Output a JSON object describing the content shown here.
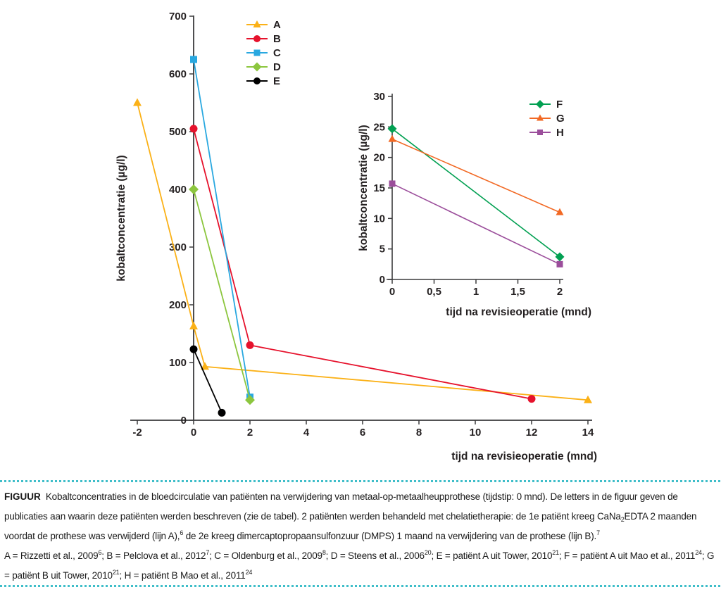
{
  "figure_text_color": "#231f20",
  "divider_color": "#3fbec9",
  "chart_data": [
    {
      "id": "main",
      "type": "line",
      "title": "",
      "xlabel": "tijd na revisieoperatie (mnd)",
      "ylabel": "kobaltconcentratie (µg/l)",
      "xlim": [
        -2,
        14
      ],
      "ylim": [
        0,
        700
      ],
      "grid": false,
      "legend_position": "top-left-inside",
      "xticks": [
        -2,
        0,
        2,
        4,
        6,
        8,
        10,
        12,
        14
      ],
      "xtick_labels": [
        "-2",
        "0",
        "2",
        "4",
        "6",
        "8",
        "10",
        "12",
        "14"
      ],
      "yticks": [
        0,
        100,
        200,
        300,
        400,
        500,
        600,
        700
      ],
      "ytick_labels": [
        "0",
        "100",
        "200",
        "300",
        "400",
        "500",
        "600",
        "700"
      ],
      "series": [
        {
          "name": "A",
          "color": "#fbb117",
          "marker": "triangle",
          "points": [
            [
              -2,
              550
            ],
            [
              0,
              163
            ],
            [
              0.4,
              93
            ],
            [
              14,
              35
            ]
          ]
        },
        {
          "name": "B",
          "color": "#e6122c",
          "marker": "circle",
          "points": [
            [
              0,
              505
            ],
            [
              2,
              130
            ],
            [
              12,
              37
            ]
          ]
        },
        {
          "name": "C",
          "color": "#29a8e0",
          "marker": "square",
          "points": [
            [
              0,
              625
            ],
            [
              2,
              40
            ]
          ]
        },
        {
          "name": "D",
          "color": "#8cc63e",
          "marker": "diamond",
          "points": [
            [
              0,
              400
            ],
            [
              2,
              35
            ]
          ]
        },
        {
          "name": "E",
          "color": "#000000",
          "marker": "circle",
          "points": [
            [
              0,
              123
            ],
            [
              1,
              13
            ]
          ]
        }
      ]
    },
    {
      "id": "inset",
      "type": "line",
      "title": "",
      "xlabel": "tijd na revisieoperatie (mnd)",
      "ylabel": "kobaltconcentratie (µg/l)",
      "xlim": [
        0,
        2
      ],
      "ylim": [
        0,
        30
      ],
      "grid": false,
      "legend_position": "top-right-inside",
      "xticks": [
        0,
        0.5,
        1,
        1.5,
        2
      ],
      "xtick_labels": [
        "0",
        "0,5",
        "1",
        "1,5",
        "2"
      ],
      "yticks": [
        0,
        5,
        10,
        15,
        20,
        25,
        30
      ],
      "ytick_labels": [
        "0",
        "5",
        "10",
        "15",
        "20",
        "25",
        "30"
      ],
      "series": [
        {
          "name": "F",
          "color": "#02a052",
          "marker": "diamond",
          "points": [
            [
              0,
              24.7
            ],
            [
              2,
              3.7
            ]
          ]
        },
        {
          "name": "G",
          "color": "#f26924",
          "marker": "triangle",
          "points": [
            [
              0,
              23
            ],
            [
              2,
              11
            ]
          ]
        },
        {
          "name": "H",
          "color": "#9b4e9b",
          "marker": "square",
          "points": [
            [
              0,
              15.7
            ],
            [
              2,
              2.5
            ]
          ]
        }
      ]
    }
  ],
  "caption": {
    "label": "FIGUUR",
    "paragraphs": [
      [
        {
          "t": "Kobaltconcentraties in de bloedcirculatie van patiënten na verwijdering van metaal-op-metaalheupprothese (tijdstip: 0 mnd). De letters in de figuur geven de publicaties aan waarin deze patiënten werden beschreven (zie de tabel). 2 patiënten werden behandeld met chelatietherapie: de 1e patiënt kreeg CaNa"
        },
        {
          "t": "2",
          "style": "sub"
        },
        {
          "t": "EDTA 2 maanden voordat de prothese was verwijderd (lijn A),"
        },
        {
          "t": "6",
          "style": "sup"
        },
        {
          "t": " de 2e kreeg dimercaptopropaansulfonzuur (DMPS) 1 maand na verwijdering van de prothese (lijn B)."
        },
        {
          "t": "7",
          "style": "sup"
        }
      ],
      [
        {
          "t": "A = Rizzetti et al., 2009"
        },
        {
          "t": "6",
          "style": "sup"
        },
        {
          "t": "; B = Pelclova et al., 2012"
        },
        {
          "t": "7",
          "style": "sup"
        },
        {
          "t": "; C = Oldenburg et al., 2009"
        },
        {
          "t": "8",
          "style": "sup"
        },
        {
          "t": "; D = Steens et al., 2006"
        },
        {
          "t": "20",
          "style": "sup"
        },
        {
          "t": "; E = patiënt A uit Tower, 2010"
        },
        {
          "t": "21",
          "style": "sup"
        },
        {
          "t": "; F = patiënt A uit Mao et al., 2011"
        },
        {
          "t": "24",
          "style": "sup"
        },
        {
          "t": "; G = patiënt B uit Tower, 2010"
        },
        {
          "t": "21",
          "style": "sup"
        },
        {
          "t": "; H = patiënt B Mao et al., 2011"
        },
        {
          "t": "24",
          "style": "sup"
        }
      ]
    ]
  }
}
